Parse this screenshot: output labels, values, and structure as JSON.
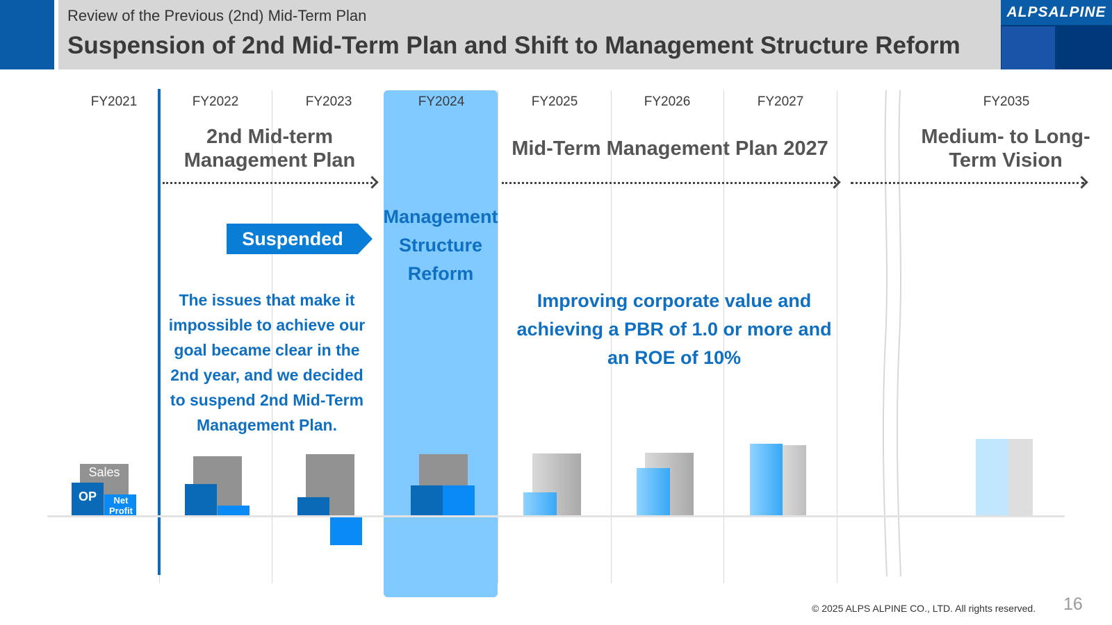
{
  "header": {
    "subtitle": "Review of the Previous (2nd) Mid-Term Plan",
    "title": "Suspension of 2nd Mid-Term Plan and Shift to Management Structure Reform"
  },
  "logo": {
    "text": "ALPSALPINE"
  },
  "timeline": {
    "years": [
      "FY2021",
      "FY2022",
      "FY2023",
      "FY2024",
      "FY2025",
      "FY2026",
      "FY2027",
      "FY2035"
    ]
  },
  "plans": {
    "second_plan": "2nd Mid-term Management Plan",
    "mtp2027": "Mid-Term Management Plan 2027",
    "vision": "Medium- to Long-Term Vision"
  },
  "suspended_label": "Suspended",
  "structure_reform_label": "Management Structure Reform",
  "issues_text": "The issues that make it impossible to achieve our goal became clear in the 2nd year, and we decided to suspend 2nd Mid-Term Management Plan.",
  "goal_text": "Improving corporate value and achieving a PBR of 1.0 or more and an ROE of 10%",
  "legend": {
    "sales": "Sales",
    "op": "OP",
    "net_profit": "Net Profit"
  },
  "colors": {
    "accent": "#0f6fc1",
    "band": "#80caff",
    "sales_actual": "#929292",
    "op_actual": "#0a6ab8",
    "np_actual": "#0a8af5"
  },
  "footer": {
    "copyright": "© 2025 ALPS ALPINE CO., LTD. All rights reserved.",
    "page": "16"
  }
}
